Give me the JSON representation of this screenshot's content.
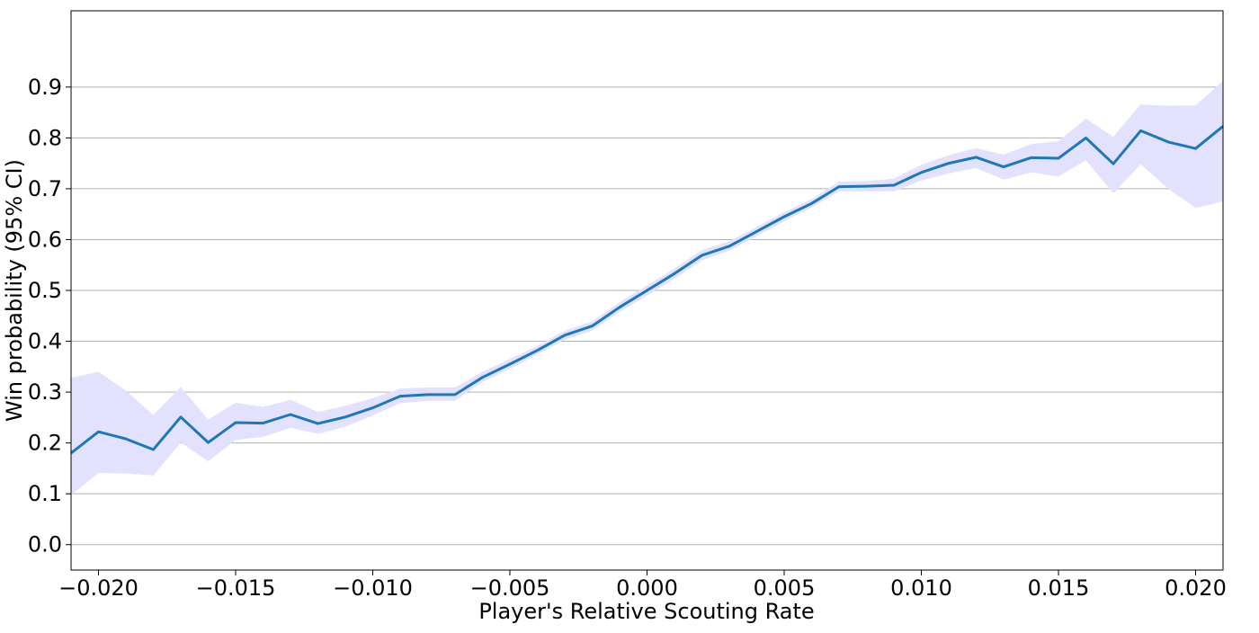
{
  "chart_data": {
    "type": "line",
    "title": "",
    "xlabel": "Player's Relative Scouting Rate",
    "ylabel": "Win probability (95% CI)",
    "xlim": [
      -0.021,
      0.021
    ],
    "ylim": [
      -0.05,
      1.05
    ],
    "grid": "horizontal",
    "xticks": [
      -0.02,
      -0.015,
      -0.01,
      -0.005,
      0.0,
      0.005,
      0.01,
      0.015,
      0.02
    ],
    "xtick_labels": [
      "−0.020",
      "−0.015",
      "−0.010",
      "−0.005",
      "0.000",
      "0.005",
      "0.010",
      "0.015",
      "0.020"
    ],
    "yticks": [
      0.0,
      0.1,
      0.2,
      0.3,
      0.4,
      0.5,
      0.6,
      0.7,
      0.8,
      0.9
    ],
    "ytick_labels": [
      "0.0",
      "0.1",
      "0.2",
      "0.3",
      "0.4",
      "0.5",
      "0.6",
      "0.7",
      "0.8",
      "0.9"
    ],
    "colors": {
      "line": "#1f77b4",
      "band": "#e2e2ff",
      "grid": "#b0b0b0"
    },
    "x": [
      -0.021,
      -0.02,
      -0.019,
      -0.018,
      -0.017,
      -0.016,
      -0.015,
      -0.014,
      -0.013,
      -0.012,
      -0.011,
      -0.01,
      -0.009,
      -0.008,
      -0.007,
      -0.006,
      -0.005,
      -0.004,
      -0.003,
      -0.002,
      -0.001,
      0.0,
      0.001,
      0.002,
      0.003,
      0.004,
      0.005,
      0.006,
      0.007,
      0.008,
      0.009,
      0.01,
      0.011,
      0.012,
      0.013,
      0.014,
      0.015,
      0.016,
      0.017,
      0.018,
      0.019,
      0.02,
      0.021
    ],
    "series": [
      {
        "values": [
          0.18,
          0.222,
          0.208,
          0.187,
          0.251,
          0.201,
          0.24,
          0.239,
          0.256,
          0.238,
          0.251,
          0.269,
          0.292,
          0.295,
          0.295,
          0.329,
          0.355,
          0.382,
          0.412,
          0.43,
          0.467,
          0.5,
          0.533,
          0.569,
          0.587,
          0.616,
          0.645,
          0.671,
          0.704,
          0.705,
          0.707,
          0.732,
          0.75,
          0.762,
          0.743,
          0.761,
          0.76,
          0.8,
          0.749,
          0.814,
          0.792,
          0.779,
          0.823
        ],
        "lower": [
          0.097,
          0.141,
          0.14,
          0.136,
          0.201,
          0.164,
          0.206,
          0.212,
          0.23,
          0.218,
          0.232,
          0.254,
          0.278,
          0.283,
          0.283,
          0.32,
          0.346,
          0.374,
          0.403,
          0.421,
          0.458,
          0.49,
          0.523,
          0.559,
          0.578,
          0.607,
          0.636,
          0.663,
          0.695,
          0.695,
          0.695,
          0.716,
          0.73,
          0.741,
          0.718,
          0.732,
          0.724,
          0.756,
          0.691,
          0.748,
          0.7,
          0.662,
          0.675
        ],
        "upper": [
          0.328,
          0.34,
          0.303,
          0.255,
          0.31,
          0.246,
          0.279,
          0.271,
          0.285,
          0.261,
          0.273,
          0.288,
          0.307,
          0.309,
          0.309,
          0.34,
          0.365,
          0.391,
          0.421,
          0.439,
          0.477,
          0.51,
          0.543,
          0.579,
          0.597,
          0.625,
          0.654,
          0.68,
          0.714,
          0.715,
          0.72,
          0.747,
          0.766,
          0.78,
          0.767,
          0.788,
          0.793,
          0.838,
          0.802,
          0.866,
          0.863,
          0.864,
          0.912
        ]
      }
    ]
  }
}
